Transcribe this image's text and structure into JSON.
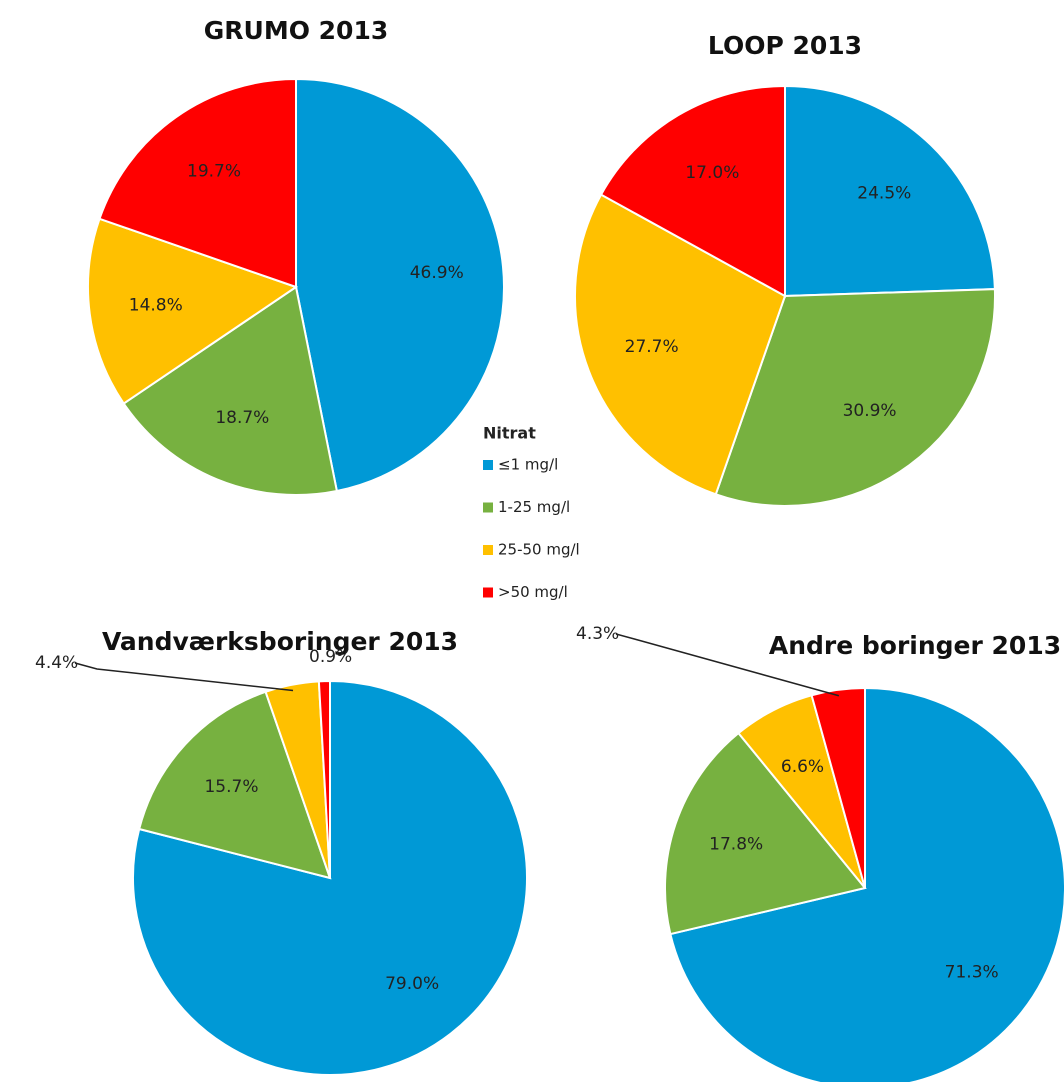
{
  "legend": {
    "title": "Nitrat"
  },
  "chart_data": [
    {
      "type": "pie",
      "title": "GRUMO 2013",
      "categories": [
        "≤1 mg/l",
        "1-25 mg/l",
        "25-50 mg/l",
        ">50 mg/l"
      ],
      "values": [
        46.9,
        18.7,
        14.8,
        19.7
      ],
      "value_labels": [
        "46.9%",
        "18.7%",
        "14.8%",
        "19.7%"
      ],
      "colors": [
        "#0099d6",
        "#77b140",
        "#ffc000",
        "#ff0000"
      ]
    },
    {
      "type": "pie",
      "title": "LOOP 2013",
      "categories": [
        "≤1 mg/l",
        "1-25 mg/l",
        "25-50 mg/l",
        ">50 mg/l"
      ],
      "values": [
        24.5,
        30.9,
        27.7,
        17.0
      ],
      "value_labels": [
        "24.5%",
        "30.9%",
        "27.7%",
        "17.0%"
      ],
      "colors": [
        "#0099d6",
        "#77b140",
        "#ffc000",
        "#ff0000"
      ]
    },
    {
      "type": "pie",
      "title": "Vandværksboringer 2013",
      "categories": [
        "≤1 mg/l",
        "1-25 mg/l",
        "25-50 mg/l",
        ">50 mg/l"
      ],
      "values": [
        79.0,
        15.7,
        4.4,
        0.9
      ],
      "value_labels": [
        "79.0%",
        "15.7%",
        "4.4%",
        "0.9%"
      ],
      "colors": [
        "#0099d6",
        "#77b140",
        "#ffc000",
        "#ff0000"
      ]
    },
    {
      "type": "pie",
      "title": "Andre boringer 2013",
      "categories": [
        "≤1 mg/l",
        "1-25 mg/l",
        "25-50 mg/l",
        ">50 mg/l"
      ],
      "values": [
        71.3,
        17.8,
        6.6,
        4.3
      ],
      "value_labels": [
        "71.3%",
        "17.8%",
        "6.6%",
        "4.3%"
      ],
      "colors": [
        "#0099d6",
        "#77b140",
        "#ffc000",
        "#ff0000"
      ]
    }
  ]
}
